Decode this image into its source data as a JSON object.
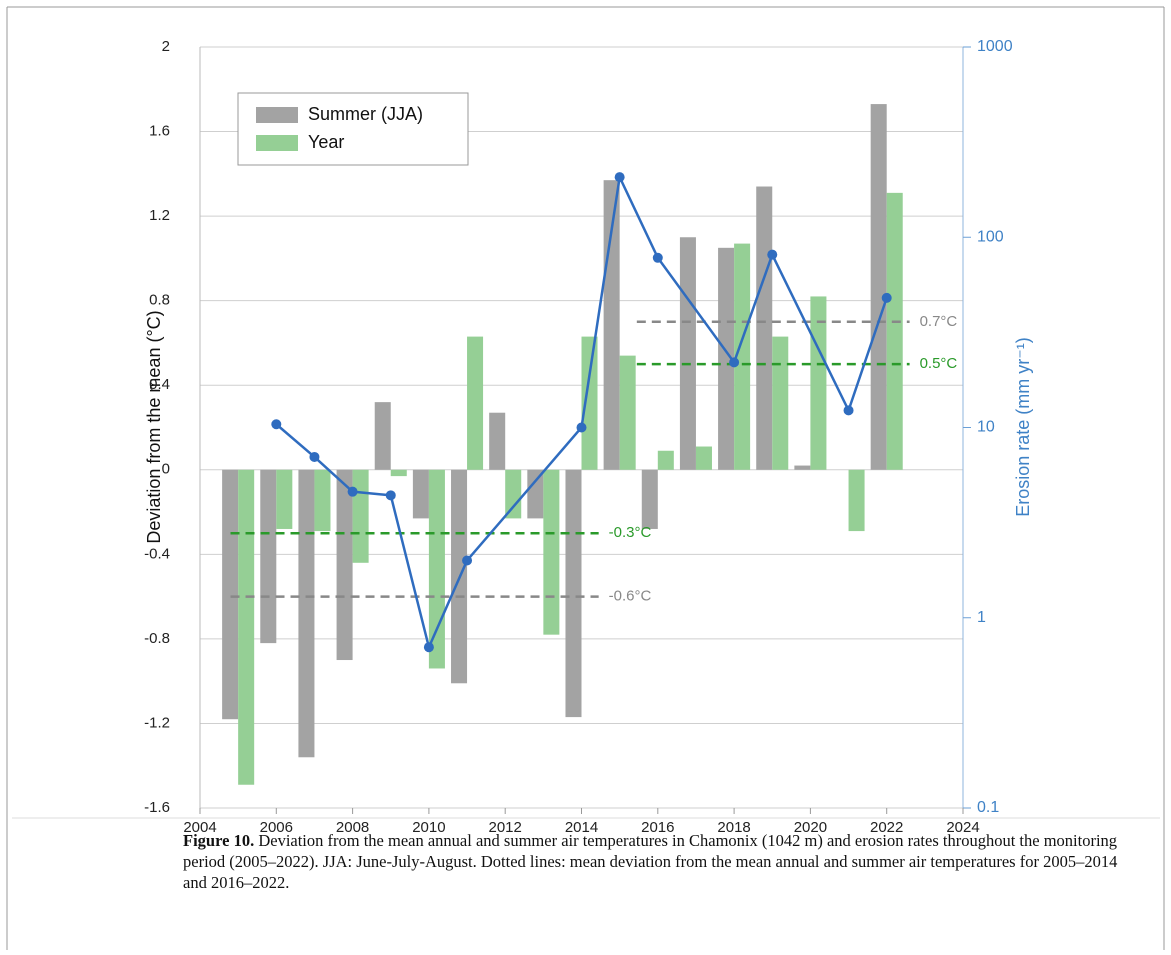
{
  "chart_data": {
    "type": "bar",
    "y_label": "Deviation from the mean (°C)",
    "y2_label": "Erosion rate (mm yr⁻¹)",
    "xlim": [
      2004,
      2024
    ],
    "xticks": [
      2004,
      2006,
      2008,
      2010,
      2012,
      2014,
      2016,
      2018,
      2020,
      2022,
      2024
    ],
    "ylim": [
      -1.6,
      2
    ],
    "yticks": [
      -1.6,
      -1.2,
      -0.8,
      -0.4,
      0,
      0.4,
      0.8,
      1.2,
      1.6,
      2
    ],
    "y2lim": [
      0.1,
      1000
    ],
    "y2ticks": [
      0.1,
      1,
      10,
      100,
      1000
    ],
    "y2_log": true,
    "grid": true,
    "legend": "upper left",
    "series": [
      {
        "name": "Summer (JJA)",
        "color": "#a3a3a3",
        "x": [
          2005,
          2006,
          2007,
          2008,
          2009,
          2010,
          2011,
          2012,
          2013,
          2014,
          2015,
          2016,
          2017,
          2018,
          2019,
          2020,
          2021,
          2022
        ],
        "values": [
          -1.18,
          -0.82,
          -1.36,
          -0.9,
          0.32,
          -0.23,
          -1.01,
          0.27,
          -0.23,
          -1.17,
          1.37,
          -0.28,
          1.1,
          1.05,
          1.34,
          0.02,
          0,
          1.73
        ]
      },
      {
        "name": "Year",
        "color": "#95cf95",
        "x": [
          2005,
          2006,
          2007,
          2008,
          2009,
          2010,
          2011,
          2012,
          2013,
          2014,
          2015,
          2016,
          2017,
          2018,
          2019,
          2020,
          2021,
          2022
        ],
        "values": [
          -1.49,
          -0.28,
          -0.29,
          -0.44,
          -0.03,
          -0.94,
          0.63,
          -0.23,
          -0.78,
          0.63,
          0.54,
          0.09,
          0.11,
          1.07,
          0.63,
          0.82,
          -0.29,
          1.31
        ]
      },
      {
        "type": "line",
        "axis": "y2",
        "color": "#2f6cbf",
        "x": [
          2006,
          2007,
          2008,
          2009,
          2010,
          2011,
          2014,
          2015,
          2016,
          2018,
          2019,
          2021,
          2022
        ],
        "values": [
          10.4,
          7,
          4.6,
          4.4,
          0.7,
          2,
          10,
          207,
          78,
          22,
          81,
          12.3,
          48
        ]
      }
    ],
    "mean_lines": [
      {
        "label": "-0.6°C",
        "value": -0.6,
        "x": [
          2004.8,
          2014.45
        ],
        "color": "#888888"
      },
      {
        "label": "-0.3°C",
        "value": -0.3,
        "x": [
          2004.8,
          2014.45
        ],
        "color": "#2a9a2a"
      },
      {
        "label": "0.7°C",
        "value": 0.7,
        "x": [
          2015.45,
          2022.6
        ],
        "color": "#888888"
      },
      {
        "label": "0.5°C",
        "value": 0.5,
        "x": [
          2015.45,
          2022.6
        ],
        "color": "#2a9a2a"
      }
    ]
  },
  "caption": {
    "label": "Figure 10.",
    "text": " Deviation from the mean annual and summer air temperatures in Chamonix (1042 m) and erosion rates throughout the monitoring period (2005–2022). JJA: June-July-August. Dotted lines: mean deviation from the mean annual and summer air temperatures for 2005–2014 and 2016–2022."
  }
}
